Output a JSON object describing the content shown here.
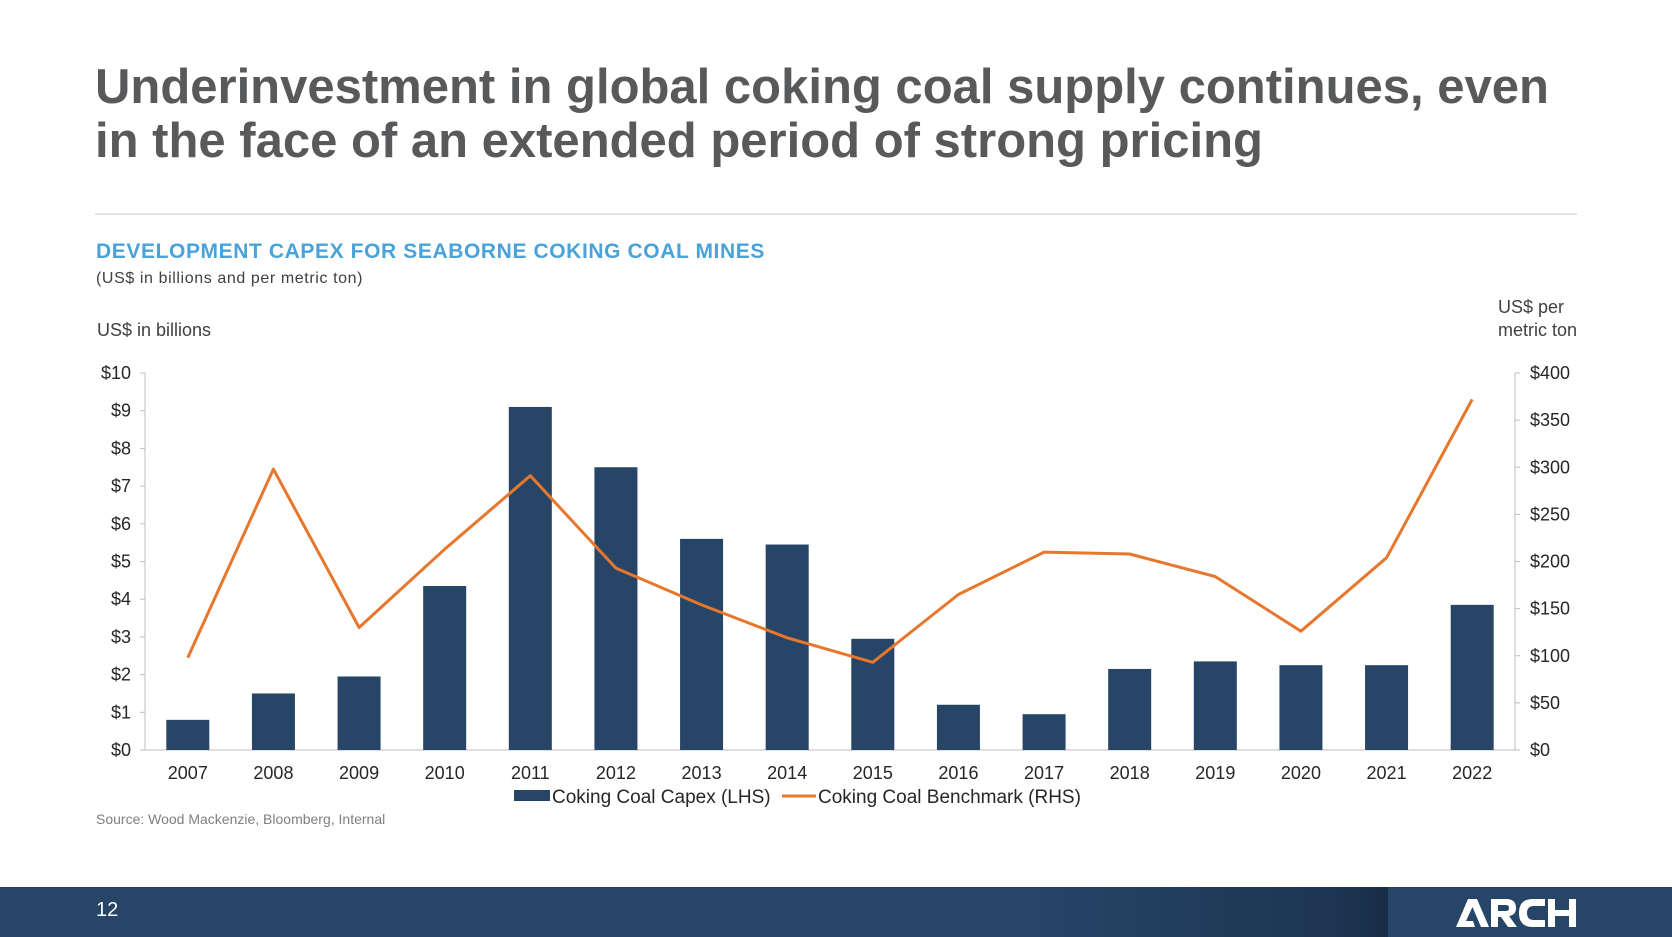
{
  "slide": {
    "title": "Underinvestment in global coking coal supply continues, even in the face of an extended period of strong pricing",
    "page_number": "12",
    "logo_text": "ARCH",
    "source": "Source: Wood Mackenzie, Bloomberg, Internal",
    "colors": {
      "title": "#58595b",
      "accent": "#4aa3d8",
      "bar": "#264567",
      "line": "#e8772e",
      "footer": "#264567"
    }
  },
  "chart_data": {
    "type": "bar",
    "title": "DEVELOPMENT CAPEX FOR SEABORNE COKING COAL MINES",
    "subtitle": "(US$ in billions and per metric ton)",
    "ylabel_left": "US$ in billions",
    "ylabel_right": "US$ per metric ton",
    "categories": [
      "2007",
      "2008",
      "2009",
      "2010",
      "2011",
      "2012",
      "2013",
      "2014",
      "2015",
      "2016",
      "2017",
      "2018",
      "2019",
      "2020",
      "2021",
      "2022"
    ],
    "y_left": {
      "ylim": [
        0,
        10
      ],
      "ticks": [
        "$0",
        "$1",
        "$2",
        "$3",
        "$4",
        "$5",
        "$6",
        "$7",
        "$8",
        "$9",
        "$10"
      ]
    },
    "y_right": {
      "ylim": [
        0,
        400
      ],
      "ticks": [
        "$0",
        "$50",
        "$100",
        "$150",
        "$200",
        "$250",
        "$300",
        "$350",
        "$400"
      ]
    },
    "series": [
      {
        "name": "Coking Coal Capex (LHS)",
        "type": "bar",
        "axis": "left",
        "values": [
          0.8,
          1.5,
          1.95,
          4.35,
          9.1,
          7.5,
          5.6,
          5.45,
          2.95,
          1.2,
          0.95,
          2.15,
          2.35,
          2.25,
          2.25,
          3.85
        ]
      },
      {
        "name": "Coking Coal Benchmark (RHS)",
        "type": "line",
        "axis": "right",
        "values": [
          98,
          298,
          130,
          213,
          291,
          193,
          154,
          119,
          93,
          165,
          210,
          208,
          184,
          126,
          204,
          372
        ]
      }
    ],
    "legend_position": "bottom-center",
    "grid": false
  }
}
